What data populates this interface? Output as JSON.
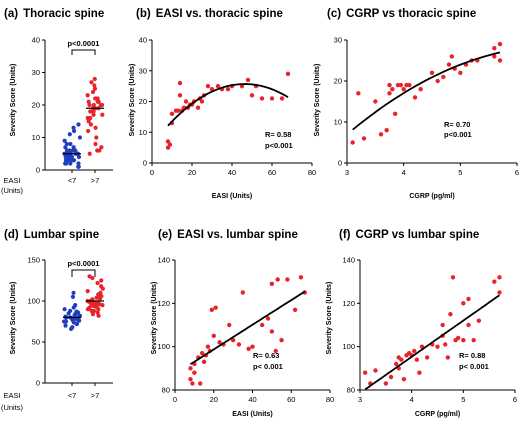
{
  "chart_data": [
    {
      "id": "a",
      "panel_label": "(a)",
      "title": "Thoracic spine",
      "type": "scatter",
      "ylabel": "Severity Score (Units)",
      "ylim": [
        0,
        40
      ],
      "yticks": [
        0,
        10,
        20,
        30,
        40
      ],
      "group_axis_label": "EASI",
      "group_axis_unit": "(Units)",
      "categories": [
        "<7",
        ">7"
      ],
      "significance": "p<0.0001",
      "series": [
        {
          "color": "#1f3fbf",
          "median": 5,
          "values": [
            1,
            1,
            2,
            2,
            2,
            2,
            3,
            3,
            3,
            3,
            3,
            4,
            4,
            4,
            4,
            4,
            4,
            5,
            5,
            5,
            5,
            5,
            5,
            5,
            5,
            6,
            6,
            6,
            6,
            7,
            7,
            8,
            8,
            9,
            10,
            11,
            12,
            13,
            14
          ]
        },
        {
          "color": "#e8232a",
          "median": 19,
          "values": [
            5,
            6,
            6,
            7,
            8,
            10,
            12,
            13,
            14,
            15,
            16,
            16,
            17,
            17,
            18,
            18,
            18,
            19,
            19,
            19,
            20,
            20,
            20,
            20,
            21,
            21,
            21,
            22,
            22,
            23,
            24,
            25,
            26,
            27,
            28
          ]
        }
      ]
    },
    {
      "id": "b",
      "panel_label": "(b)",
      "title": "EASI vs. thoracic spine",
      "type": "scatter",
      "xlabel": "EASI (Units)",
      "ylabel": "Severity Score (Units)",
      "xlim": [
        0,
        80
      ],
      "ylim": [
        0,
        40
      ],
      "xticks": [
        0,
        20,
        40,
        60,
        80
      ],
      "yticks": [
        0,
        10,
        20,
        30,
        40
      ],
      "stats": [
        "R= 0.58",
        "p<0.001"
      ],
      "fit": "quadratic",
      "points": [
        [
          8,
          5
        ],
        [
          8,
          7
        ],
        [
          9,
          6
        ],
        [
          10,
          13
        ],
        [
          10,
          16
        ],
        [
          12,
          17
        ],
        [
          13,
          17
        ],
        [
          14,
          22
        ],
        [
          14,
          26
        ],
        [
          15,
          17
        ],
        [
          16,
          18
        ],
        [
          17,
          20
        ],
        [
          18,
          18
        ],
        [
          19,
          19
        ],
        [
          20,
          19
        ],
        [
          21,
          20
        ],
        [
          23,
          18
        ],
        [
          24,
          21
        ],
        [
          25,
          20
        ],
        [
          26,
          22
        ],
        [
          28,
          25
        ],
        [
          30,
          24
        ],
        [
          33,
          25
        ],
        [
          35,
          24
        ],
        [
          38,
          24
        ],
        [
          40,
          25
        ],
        [
          45,
          25
        ],
        [
          48,
          27
        ],
        [
          50,
          22
        ],
        [
          52,
          25
        ],
        [
          55,
          21
        ],
        [
          60,
          21
        ],
        [
          65,
          21
        ],
        [
          68,
          29
        ]
      ]
    },
    {
      "id": "c",
      "panel_label": "(c)",
      "title": "CGRP vs thoracic spine",
      "type": "scatter",
      "xlabel": "CGRP (pg/ml)",
      "ylabel": "Severity Score (Units)",
      "xlim": [
        3,
        6
      ],
      "ylim": [
        0,
        30
      ],
      "xticks": [
        3,
        4,
        5,
        6
      ],
      "yticks": [
        0,
        10,
        20,
        30
      ],
      "stats": [
        "R= 0.70",
        "p<0.001"
      ],
      "fit": "quadratic",
      "points": [
        [
          3.1,
          5
        ],
        [
          3.2,
          17
        ],
        [
          3.3,
          6
        ],
        [
          3.5,
          15
        ],
        [
          3.6,
          7
        ],
        [
          3.7,
          8
        ],
        [
          3.75,
          17
        ],
        [
          3.75,
          19
        ],
        [
          3.8,
          18
        ],
        [
          3.85,
          12
        ],
        [
          3.9,
          19
        ],
        [
          3.95,
          19
        ],
        [
          4.0,
          18
        ],
        [
          4.05,
          19
        ],
        [
          4.1,
          19
        ],
        [
          4.2,
          16
        ],
        [
          4.3,
          18
        ],
        [
          4.5,
          22
        ],
        [
          4.6,
          20
        ],
        [
          4.7,
          21
        ],
        [
          4.8,
          24
        ],
        [
          4.85,
          26
        ],
        [
          4.9,
          23
        ],
        [
          5.0,
          22
        ],
        [
          5.1,
          24
        ],
        [
          5.2,
          25
        ],
        [
          5.3,
          25
        ],
        [
          5.6,
          26
        ],
        [
          5.6,
          28
        ],
        [
          5.7,
          29
        ],
        [
          5.7,
          25
        ]
      ]
    },
    {
      "id": "d",
      "panel_label": "(d)",
      "title": "Lumbar spine",
      "type": "scatter",
      "ylabel": "Severity Score (Units)",
      "ylim": [
        0,
        150
      ],
      "yticks": [
        0,
        50,
        100,
        150
      ],
      "group_axis_label": "EASI",
      "group_axis_unit": "(Units)",
      "categories": [
        "<7",
        ">7"
      ],
      "significance": "p<0.0001",
      "series": [
        {
          "color": "#1f3fbf",
          "median": 80,
          "values": [
            66,
            68,
            70,
            72,
            72,
            74,
            75,
            75,
            76,
            77,
            77,
            78,
            78,
            79,
            79,
            80,
            80,
            80,
            81,
            81,
            82,
            82,
            83,
            84,
            85,
            86,
            87,
            88,
            90,
            92,
            95,
            105,
            110
          ]
        },
        {
          "color": "#e8232a",
          "median": 100,
          "values": [
            82,
            84,
            86,
            88,
            88,
            90,
            90,
            92,
            93,
            94,
            95,
            95,
            96,
            96,
            97,
            98,
            98,
            99,
            100,
            100,
            100,
            101,
            102,
            103,
            104,
            105,
            106,
            108,
            110,
            112,
            115,
            118,
            122,
            125,
            128,
            130
          ]
        }
      ]
    },
    {
      "id": "e",
      "panel_label": "(e)",
      "title": "EASI vs. lumbar spine",
      "type": "scatter",
      "xlabel": "EASI (Units)",
      "ylabel": "Severity Score (Units)",
      "xlim": [
        0,
        80
      ],
      "ylim": [
        80,
        140
      ],
      "xticks": [
        0,
        20,
        40,
        60,
        80
      ],
      "yticks": [
        80,
        100,
        120,
        140
      ],
      "stats": [
        "R= 0.63",
        "p< 0.001"
      ],
      "fit": "linear",
      "points": [
        [
          8,
          85
        ],
        [
          8,
          90
        ],
        [
          9,
          83
        ],
        [
          10,
          92
        ],
        [
          10,
          88
        ],
        [
          12,
          95
        ],
        [
          13,
          83
        ],
        [
          14,
          97
        ],
        [
          15,
          93
        ],
        [
          16,
          96
        ],
        [
          17,
          100
        ],
        [
          18,
          98
        ],
        [
          19,
          117
        ],
        [
          20,
          105
        ],
        [
          21,
          118
        ],
        [
          23,
          102
        ],
        [
          25,
          101
        ],
        [
          28,
          110
        ],
        [
          30,
          103
        ],
        [
          33,
          101
        ],
        [
          35,
          125
        ],
        [
          38,
          99
        ],
        [
          40,
          100
        ],
        [
          45,
          110
        ],
        [
          48,
          113
        ],
        [
          50,
          107
        ],
        [
          50,
          129
        ],
        [
          52,
          98
        ],
        [
          53,
          131
        ],
        [
          55,
          103
        ],
        [
          58,
          131
        ],
        [
          62,
          117
        ],
        [
          65,
          132
        ],
        [
          67,
          125
        ]
      ]
    },
    {
      "id": "f",
      "panel_label": "(f)",
      "title": "CGRP vs lumbar spine",
      "type": "scatter",
      "xlabel": "CGRP (pg/ml)",
      "ylabel": "Severity Score (Units)",
      "xlim": [
        3,
        6
      ],
      "ylim": [
        80,
        140
      ],
      "xticks": [
        3,
        4,
        5,
        6
      ],
      "yticks": [
        80,
        100,
        120,
        140
      ],
      "stats": [
        "R= 0.88",
        "p< 0.001"
      ],
      "fit": "linear",
      "points": [
        [
          3.1,
          88
        ],
        [
          3.2,
          83
        ],
        [
          3.3,
          89
        ],
        [
          3.5,
          83
        ],
        [
          3.6,
          86
        ],
        [
          3.7,
          92
        ],
        [
          3.75,
          90
        ],
        [
          3.75,
          95
        ],
        [
          3.8,
          94
        ],
        [
          3.85,
          85
        ],
        [
          3.9,
          96
        ],
        [
          3.95,
          97
        ],
        [
          4.0,
          96
        ],
        [
          4.05,
          98
        ],
        [
          4.1,
          94
        ],
        [
          4.15,
          88
        ],
        [
          4.2,
          100
        ],
        [
          4.3,
          95
        ],
        [
          4.4,
          101
        ],
        [
          4.5,
          100
        ],
        [
          4.6,
          105
        ],
        [
          4.6,
          110
        ],
        [
          4.65,
          101
        ],
        [
          4.7,
          95
        ],
        [
          4.75,
          115
        ],
        [
          4.8,
          132
        ],
        [
          4.85,
          103
        ],
        [
          4.9,
          104
        ],
        [
          5.0,
          120
        ],
        [
          5.0,
          103
        ],
        [
          5.1,
          122
        ],
        [
          5.1,
          110
        ],
        [
          5.2,
          103
        ],
        [
          5.3,
          112
        ],
        [
          5.6,
          130
        ],
        [
          5.7,
          125
        ],
        [
          5.7,
          132
        ]
      ]
    }
  ]
}
